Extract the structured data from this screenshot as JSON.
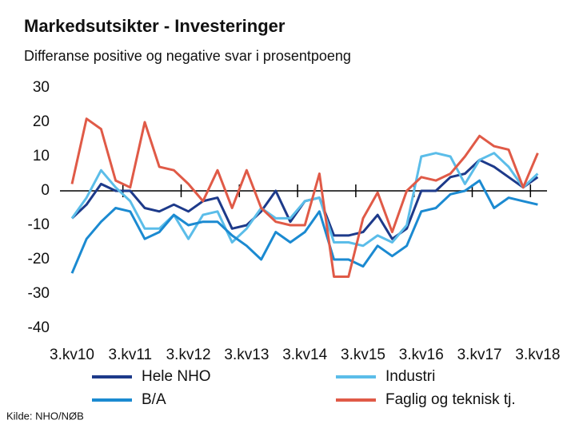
{
  "chart_data": {
    "type": "line",
    "title": "Markedsutsikter  - Investeringer",
    "subtitle": "Differanse positive og negative svar i prosentpoeng",
    "source": "Kilde: NHO/NØB",
    "categories": [
      "3.kv10",
      null,
      null,
      null,
      "3.kv11",
      null,
      null,
      null,
      "3.kv12",
      null,
      null,
      null,
      "3.kv13",
      null,
      null,
      null,
      "3.kv14",
      null,
      null,
      null,
      "3.kv15",
      null,
      null,
      null,
      "3.kv16",
      null,
      null,
      null,
      "3.kv17",
      null,
      null,
      null,
      "3.kv18"
    ],
    "ylim": [
      -40,
      30
    ],
    "yticks": [
      -40,
      -30,
      -20,
      -10,
      0,
      10,
      20,
      30
    ],
    "grid": false,
    "series": [
      {
        "name": "Hele NHO",
        "color": "#1d3a8a",
        "values": [
          -8,
          -4,
          2,
          0,
          0,
          -5,
          -6,
          -4,
          -6,
          -3,
          -2,
          -11,
          -10,
          -6,
          0,
          -9,
          -3,
          -2,
          -13,
          -13,
          -12,
          -7,
          -14,
          -11,
          0,
          0,
          4,
          5,
          9,
          7,
          4,
          1,
          4
        ]
      },
      {
        "name": "Industri",
        "color": "#5bbde9",
        "values": [
          -8,
          -2,
          6,
          1,
          -3,
          -11,
          -11,
          -7,
          -14,
          -7,
          -6,
          -15,
          -11,
          -5,
          -8,
          -8,
          -3,
          -2,
          -15,
          -15,
          -16,
          -13,
          -15,
          -10,
          10,
          11,
          10,
          2,
          9,
          11,
          7,
          1,
          5
        ]
      },
      {
        "name": "B/A",
        "color": "#1b8ad1",
        "values": [
          -24,
          -14,
          -9,
          -5,
          -6,
          -14,
          -12,
          -7,
          -10,
          -9,
          -9,
          -13,
          -16,
          -20,
          -12,
          -15,
          -12,
          -6,
          -20,
          -20,
          -22,
          -16,
          -19,
          -16,
          -6,
          -5,
          -1,
          0,
          3,
          -5,
          -2,
          -3,
          -4
        ]
      },
      {
        "name": "Faglig og teknisk tj.",
        "color": "#e05a47",
        "values": [
          2,
          21,
          18,
          3,
          1,
          20,
          7,
          6,
          2,
          -3,
          6,
          -5,
          6,
          -5,
          -9,
          -10,
          -10,
          5,
          -25,
          -25,
          -8,
          -0.5,
          -12,
          0,
          4,
          3,
          5,
          10,
          16,
          13,
          12,
          1,
          11
        ]
      }
    ]
  }
}
